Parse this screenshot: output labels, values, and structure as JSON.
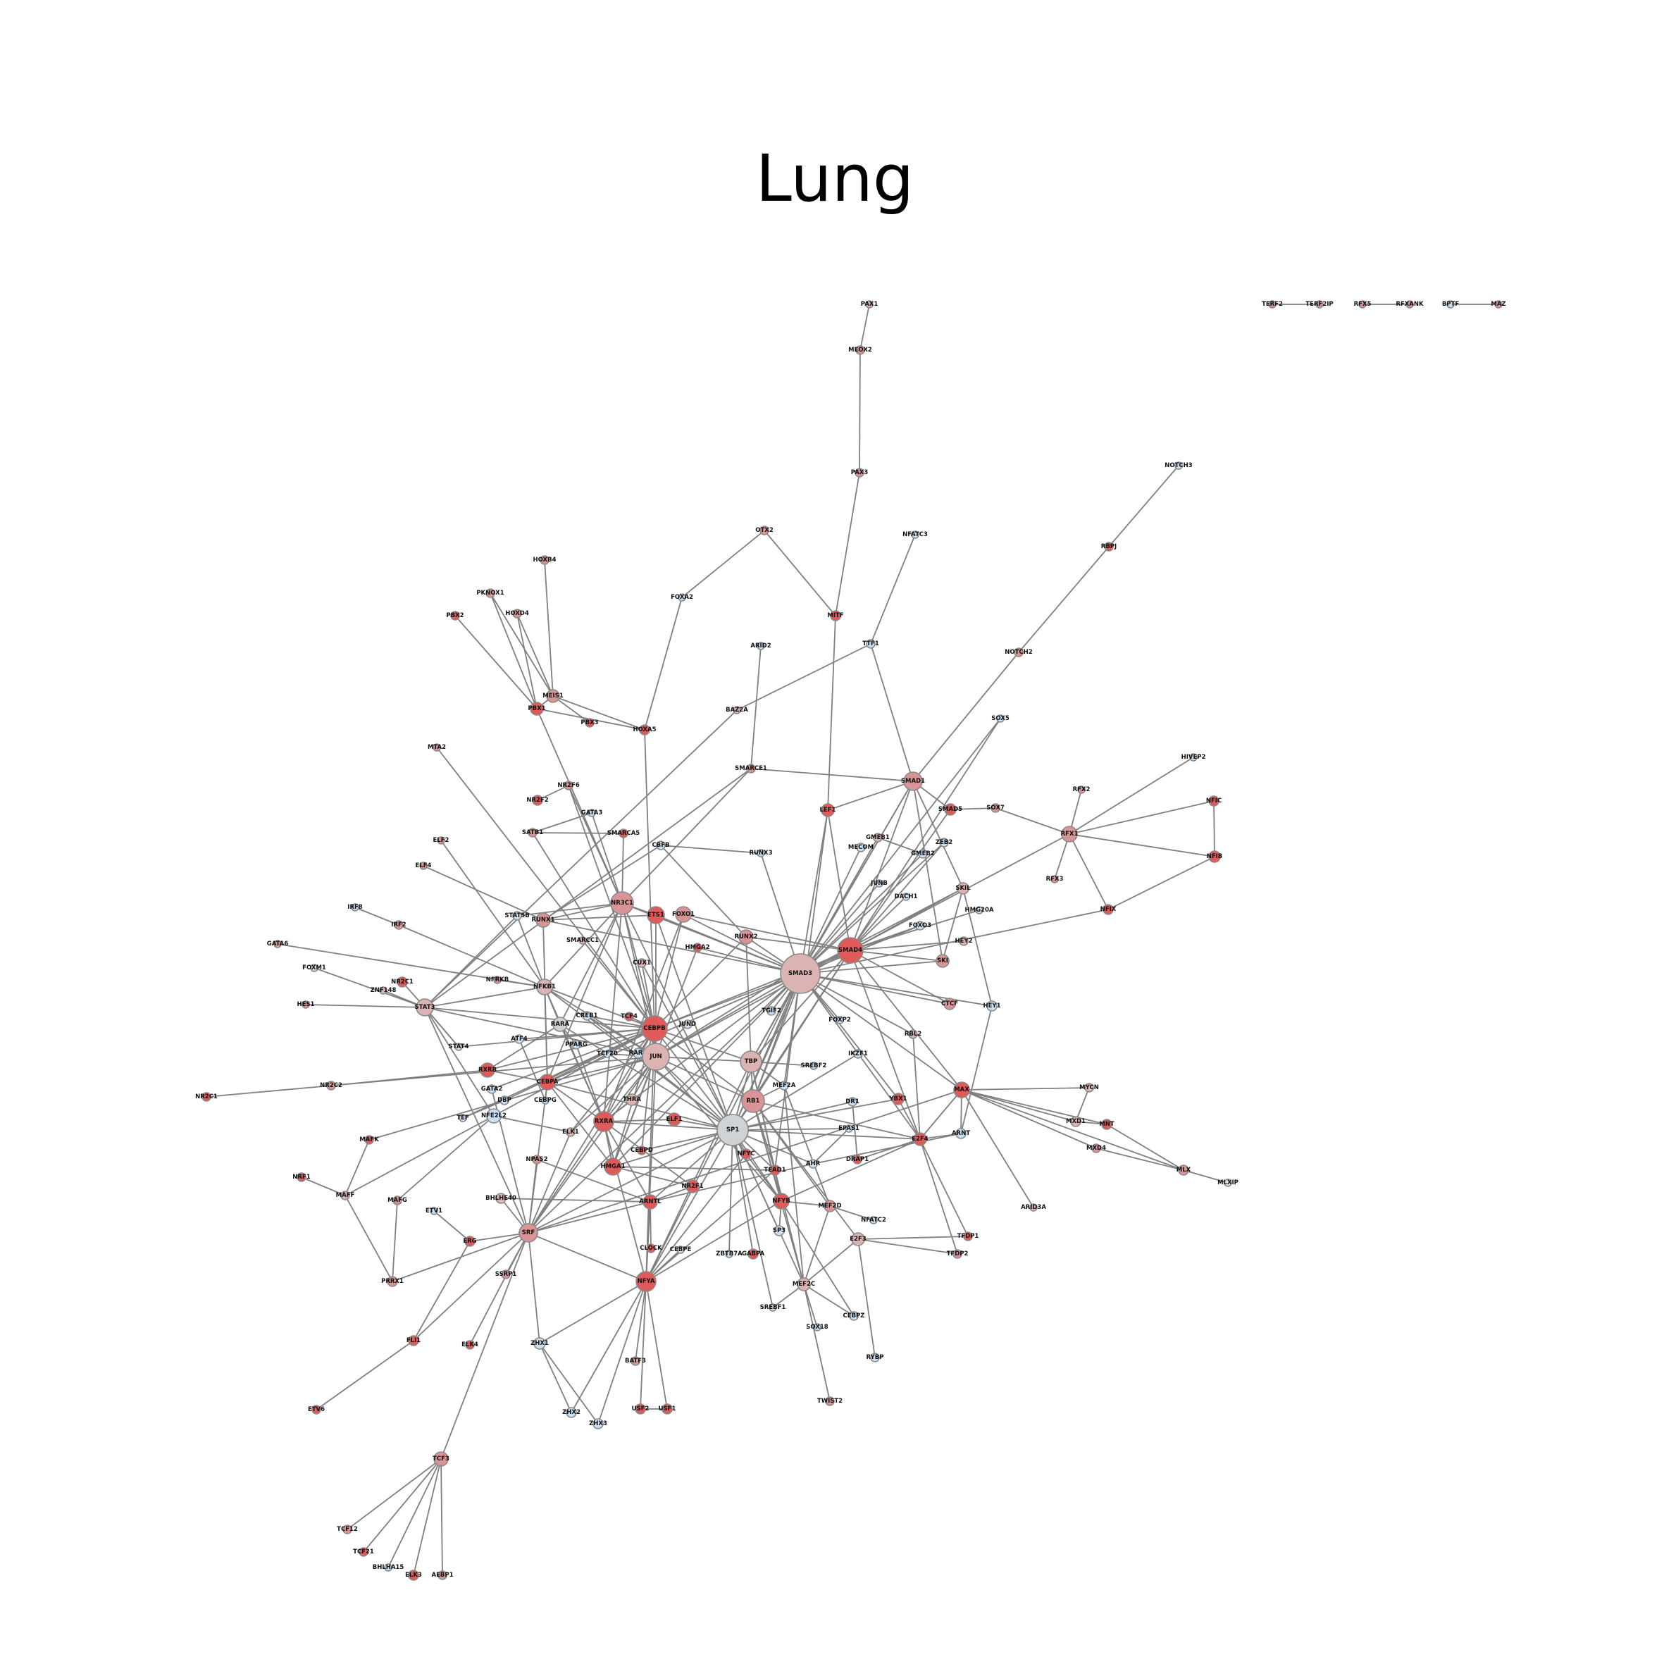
{
  "title": "Lung",
  "colors": {
    "red": "#e05a5a",
    "pink": "#d99595",
    "lightpink": "#dcb3b3",
    "grey": "#d0d3d6",
    "lightblue": "#c9e0f2",
    "edge": "#808080"
  },
  "nodes": [
    {
      "id": "TERF2",
      "label": "TERF2",
      "c": "pink"
    },
    {
      "id": "TERF2IP",
      "label": "TERF2IP",
      "c": "pink"
    },
    {
      "id": "RFX5",
      "label": "RFX5",
      "c": "pink"
    },
    {
      "id": "RFXANK",
      "label": "RFXANK",
      "c": "pink"
    },
    {
      "id": "BPTF",
      "label": "BPTF",
      "c": "lightblue"
    },
    {
      "id": "MAZ",
      "label": "MAZ",
      "c": "pink"
    },
    {
      "id": "PAX1",
      "label": "PAX1",
      "c": "lightpink"
    },
    {
      "id": "MEOX2",
      "label": "MEOX2",
      "c": "pink"
    },
    {
      "id": "PAX3",
      "label": "PAX3",
      "c": "pink"
    },
    {
      "id": "NOTCH3",
      "label": "NOTCH3",
      "c": "lightblue"
    },
    {
      "id": "NFATC3",
      "label": "NFATC3",
      "c": "lightblue"
    },
    {
      "id": "RBPJ",
      "label": "RBPJ",
      "c": "red"
    },
    {
      "id": "OTX2",
      "label": "OTX2",
      "c": "pink"
    },
    {
      "id": "HOXB4",
      "label": "HOXB4",
      "c": "pink"
    },
    {
      "id": "PKNOX1",
      "label": "PKNOX1",
      "c": "pink"
    },
    {
      "id": "PBX2",
      "label": "PBX2",
      "c": "red"
    },
    {
      "id": "HOXD4",
      "label": "HOXD4",
      "c": "pink"
    },
    {
      "id": "FOXA2",
      "label": "FOXA2",
      "c": "lightblue"
    },
    {
      "id": "MITF",
      "label": "MITF",
      "c": "red"
    },
    {
      "id": "ARID2",
      "label": "ARID2",
      "c": "lightblue"
    },
    {
      "id": "TTF1",
      "label": "TTF1",
      "c": "lightblue"
    },
    {
      "id": "NOTCH2",
      "label": "NOTCH2",
      "c": "pink"
    },
    {
      "id": "MEIS1",
      "label": "MEIS1",
      "c": "pink"
    },
    {
      "id": "PBX1",
      "label": "PBX1",
      "c": "red"
    },
    {
      "id": "PBX3",
      "label": "PBX3",
      "c": "red"
    },
    {
      "id": "HOXA5",
      "label": "HOXA5",
      "c": "red"
    },
    {
      "id": "BAZ2A",
      "label": "BAZ2A",
      "c": "lightpink"
    },
    {
      "id": "SOX5",
      "label": "SOX5",
      "c": "lightblue"
    },
    {
      "id": "HIVEP2",
      "label": "HIVEP2",
      "c": "lightblue"
    },
    {
      "id": "MTA2",
      "label": "MTA2",
      "c": "pink"
    },
    {
      "id": "SMARCE1",
      "label": "SMARCE1",
      "c": "pink"
    },
    {
      "id": "SMAD1",
      "label": "SMAD1",
      "c": "pink"
    },
    {
      "id": "NR2F6",
      "label": "NR2F6",
      "c": "pink"
    },
    {
      "id": "NR2F2",
      "label": "NR2F2",
      "c": "red"
    },
    {
      "id": "RFX2",
      "label": "RFX2",
      "c": "pink"
    },
    {
      "id": "NFIC",
      "label": "NFIC",
      "c": "red"
    },
    {
      "id": "LEF1",
      "label": "LEF1",
      "c": "red"
    },
    {
      "id": "SMAD5",
      "label": "SMAD5",
      "c": "red"
    },
    {
      "id": "SOX7",
      "label": "SOX7",
      "c": "pink"
    },
    {
      "id": "GATA3",
      "label": "GATA3",
      "c": "lightblue"
    },
    {
      "id": "SATB1",
      "label": "SATB1",
      "c": "pink"
    },
    {
      "id": "SMARCA5",
      "label": "SMARCA5",
      "c": "red"
    },
    {
      "id": "GMEB1",
      "label": "GMEB1",
      "c": "lightpink"
    },
    {
      "id": "RFX1",
      "label": "RFX1",
      "c": "pink"
    },
    {
      "id": "ELF2",
      "label": "ELF2",
      "c": "pink"
    },
    {
      "id": "CBFB",
      "label": "CBFB",
      "c": "lightblue"
    },
    {
      "id": "MECOM",
      "label": "MECOM",
      "c": "lightblue"
    },
    {
      "id": "ZEB2",
      "label": "ZEB2",
      "c": "lightblue"
    },
    {
      "id": "RUNX3",
      "label": "RUNX3",
      "c": "lightblue"
    },
    {
      "id": "GMEB2",
      "label": "GMEB2",
      "c": "lightblue"
    },
    {
      "id": "NFIB",
      "label": "NFIB",
      "c": "red"
    },
    {
      "id": "ELF4",
      "label": "ELF4",
      "c": "pink"
    },
    {
      "id": "RFX3",
      "label": "RFX3",
      "c": "pink"
    },
    {
      "id": "JUNB",
      "label": "JUNB",
      "c": "lightblue"
    },
    {
      "id": "SKIL",
      "label": "SKIL",
      "c": "lightpink"
    },
    {
      "id": "NR3C1",
      "label": "NR3C1",
      "c": "pink"
    },
    {
      "id": "DACH1",
      "label": "DACH1",
      "c": "lightblue"
    },
    {
      "id": "IRF8",
      "label": "IRF8",
      "c": "lightblue"
    },
    {
      "id": "STAT5B",
      "label": "STAT5B",
      "c": "lightblue"
    },
    {
      "id": "RUNX1",
      "label": "RUNX1",
      "c": "pink"
    },
    {
      "id": "ETS1",
      "label": "ETS1",
      "c": "red"
    },
    {
      "id": "FOXO1",
      "label": "FOXO1",
      "c": "pink"
    },
    {
      "id": "NFIX",
      "label": "NFIX",
      "c": "red"
    },
    {
      "id": "HMG20A",
      "label": "HMG20A",
      "c": "lightblue"
    },
    {
      "id": "IRF2",
      "label": "IRF2",
      "c": "pink"
    },
    {
      "id": "FOXO3",
      "label": "FOXO3",
      "c": "lightblue"
    },
    {
      "id": "SMARCC1",
      "label": "SMARCC1",
      "c": "lightpink"
    },
    {
      "id": "RUNX2",
      "label": "RUNX2",
      "c": "pink"
    },
    {
      "id": "HEY2",
      "label": "HEY2",
      "c": "lightpink"
    },
    {
      "id": "GATA6",
      "label": "GATA6",
      "c": "pink"
    },
    {
      "id": "SMAD4",
      "label": "SMAD4",
      "c": "red"
    },
    {
      "id": "HMGA2",
      "label": "HMGA2",
      "c": "red"
    },
    {
      "id": "UBTF",
      "label": "UBTF",
      "c": "pink"
    },
    {
      "id": "SKI",
      "label": "SKI",
      "c": "pink"
    },
    {
      "id": "FOXM1",
      "label": "FOXM1",
      "c": "lightblue"
    },
    {
      "id": "CUX1",
      "label": "CUX1",
      "c": "lightpink"
    },
    {
      "id": "NR2C1",
      "label": "NR2C1",
      "c": "red"
    },
    {
      "id": "NFRKB",
      "label": "NFRKB",
      "c": "pink"
    },
    {
      "id": "SMAD3",
      "label": "SMAD3",
      "c": "lightpink"
    },
    {
      "id": "ZNF148",
      "label": "ZNF148",
      "c": "lightpink"
    },
    {
      "id": "NFKB1",
      "label": "NFKB1",
      "c": "lightpink"
    },
    {
      "id": "CTCF",
      "label": "CTCF",
      "c": "pink"
    },
    {
      "id": "HES1",
      "label": "HES1",
      "c": "pink"
    },
    {
      "id": "STAT3",
      "label": "STAT3",
      "c": "lightpink"
    },
    {
      "id": "CREB1",
      "label": "CREB1",
      "c": "lightblue"
    },
    {
      "id": "TGIF2",
      "label": "TGIF2",
      "c": "lightblue"
    },
    {
      "id": "HEY1",
      "label": "HEY1",
      "c": "lightblue"
    },
    {
      "id": "TCF4",
      "label": "TCF4",
      "c": "red"
    },
    {
      "id": "FOXP2",
      "label": "FOXP2",
      "c": "lightblue"
    },
    {
      "id": "RARA",
      "label": "RARA",
      "c": "grey"
    },
    {
      "id": "JUND",
      "label": "JUND",
      "c": "lightblue"
    },
    {
      "id": "CEBPB",
      "label": "CEBPB",
      "c": "red"
    },
    {
      "id": "RBL2",
      "label": "RBL2",
      "c": "lightpink"
    },
    {
      "id": "ATF4",
      "label": "ATF4",
      "c": "lightblue"
    },
    {
      "id": "STAT4",
      "label": "STAT4",
      "c": "lightblue"
    },
    {
      "id": "PPARG",
      "label": "PPARG",
      "c": "lightblue"
    },
    {
      "id": "TCF20",
      "label": "TCF20",
      "c": "lightblue"
    },
    {
      "id": "RARG",
      "label": "RARG",
      "c": "lightblue"
    },
    {
      "id": "JUN",
      "label": "JUN",
      "c": "lightpink"
    },
    {
      "id": "IKZF1",
      "label": "IKZF1",
      "c": "lightblue"
    },
    {
      "id": "TBP",
      "label": "TBP",
      "c": "lightpink"
    },
    {
      "id": "SREBF2",
      "label": "SREBF2",
      "c": "lightblue"
    },
    {
      "id": "RXRB",
      "label": "RXRB",
      "c": "red"
    },
    {
      "id": "NR2C2",
      "label": "NR2C2",
      "c": "pink"
    },
    {
      "id": "CEBPA",
      "label": "CEBPA",
      "c": "red"
    },
    {
      "id": "YBX1",
      "label": "YBX1",
      "c": "red"
    },
    {
      "id": "MAX",
      "label": "MAX",
      "c": "red"
    },
    {
      "id": "MYCN",
      "label": "MYCN",
      "c": "lightpink"
    },
    {
      "id": "NR2C1b",
      "label": "NR2C1",
      "c": "red"
    },
    {
      "id": "GATA2",
      "label": "GATA2",
      "c": "lightblue"
    },
    {
      "id": "CEBPG",
      "label": "CEBPG",
      "c": "lightblue"
    },
    {
      "id": "DBP",
      "label": "DBP",
      "c": "lightblue"
    },
    {
      "id": "THRA",
      "label": "THRA",
      "c": "lightpink"
    },
    {
      "id": "MEF2A",
      "label": "MEF2A",
      "c": "lightblue"
    },
    {
      "id": "RB1",
      "label": "RB1",
      "c": "pink"
    },
    {
      "id": "DR1",
      "label": "DR1",
      "c": "lightblue"
    },
    {
      "id": "MXD1",
      "label": "MXD1",
      "c": "lightpink"
    },
    {
      "id": "MNT",
      "label": "MNT",
      "c": "red"
    },
    {
      "id": "NFE2L2",
      "label": "NFE2L2",
      "c": "lightblue"
    },
    {
      "id": "TEF",
      "label": "TEF",
      "c": "lightblue"
    },
    {
      "id": "RXRA",
      "label": "RXRA",
      "c": "red"
    },
    {
      "id": "ELF1",
      "label": "ELF1",
      "c": "red"
    },
    {
      "id": "SP1",
      "label": "SP1",
      "c": "grey"
    },
    {
      "id": "EPAS1",
      "label": "EPAS1",
      "c": "lightblue"
    },
    {
      "id": "ARNT",
      "label": "ARNT",
      "c": "lightblue"
    },
    {
      "id": "MAFK",
      "label": "MAFK",
      "c": "red"
    },
    {
      "id": "ELK1",
      "label": "ELK1",
      "c": "lightpink"
    },
    {
      "id": "E2F4",
      "label": "E2F4",
      "c": "red"
    },
    {
      "id": "MXD4",
      "label": "MXD4",
      "c": "pink"
    },
    {
      "id": "CEBPD",
      "label": "CEBPD",
      "c": "red"
    },
    {
      "id": "NFYC",
      "label": "NFYC",
      "c": "red"
    },
    {
      "id": "NPAS2",
      "label": "NPAS2",
      "c": "pink"
    },
    {
      "id": "HMGA1",
      "label": "HMGA1",
      "c": "red"
    },
    {
      "id": "TEAD1",
      "label": "TEAD1",
      "c": "red"
    },
    {
      "id": "AHR",
      "label": "AHR",
      "c": "lightblue"
    },
    {
      "id": "DRAP1",
      "label": "DRAP1",
      "c": "red"
    },
    {
      "id": "MLX",
      "label": "MLX",
      "c": "pink"
    },
    {
      "id": "MLXIP",
      "label": "MLXIP",
      "c": "lightblue"
    },
    {
      "id": "NRF1",
      "label": "NRF1",
      "c": "red"
    },
    {
      "id": "MAFF",
      "label": "MAFF",
      "c": "lightpink"
    },
    {
      "id": "MAFG",
      "label": "MAFG",
      "c": "pink"
    },
    {
      "id": "NR2F1",
      "label": "NR2F1",
      "c": "red"
    },
    {
      "id": "BHLHE40",
      "label": "BHLHE40",
      "c": "lightpink"
    },
    {
      "id": "ARNTL",
      "label": "ARNTL",
      "c": "red"
    },
    {
      "id": "NFYB",
      "label": "NFYB",
      "c": "red"
    },
    {
      "id": "ARID3A",
      "label": "ARID3A",
      "c": "lightpink"
    },
    {
      "id": "ETV1",
      "label": "ETV1",
      "c": "lightblue"
    },
    {
      "id": "MEF2D",
      "label": "MEF2D",
      "c": "pink"
    },
    {
      "id": "NFATC2",
      "label": "NFATC2",
      "c": "lightblue"
    },
    {
      "id": "ERG",
      "label": "ERG",
      "c": "red"
    },
    {
      "id": "SRF",
      "label": "SRF",
      "c": "pink"
    },
    {
      "id": "SP3",
      "label": "SP3",
      "c": "lightblue"
    },
    {
      "id": "TFDP1",
      "label": "TFDP1",
      "c": "red"
    },
    {
      "id": "CLOCK",
      "label": "CLOCK",
      "c": "red"
    },
    {
      "id": "E2F3",
      "label": "E2F3",
      "c": "lightpink"
    },
    {
      "id": "TFDP2",
      "label": "TFDP2",
      "c": "pink"
    },
    {
      "id": "CEBPE",
      "label": "CEBPE",
      "c": "lightblue"
    },
    {
      "id": "ZBTB7A",
      "label": "ZBTB7A",
      "c": "lightblue"
    },
    {
      "id": "GABPA",
      "label": "GABPA",
      "c": "red"
    },
    {
      "id": "SSRP1",
      "label": "SSRP1",
      "c": "pink"
    },
    {
      "id": "PRRX1",
      "label": "PRRX1",
      "c": "pink"
    },
    {
      "id": "NFYA",
      "label": "NFYA",
      "c": "red"
    },
    {
      "id": "MEF2C",
      "label": "MEF2C",
      "c": "lightpink"
    },
    {
      "id": "SREBF1",
      "label": "SREBF1",
      "c": "lightblue"
    },
    {
      "id": "CEBPZ",
      "label": "CEBPZ",
      "c": "lightblue"
    },
    {
      "id": "SOX18",
      "label": "SOX18",
      "c": "lightblue"
    },
    {
      "id": "FLI1",
      "label": "FLI1",
      "c": "red"
    },
    {
      "id": "ZHX1",
      "label": "ZHX1",
      "c": "lightblue"
    },
    {
      "id": "ELK4",
      "label": "ELK4",
      "c": "red"
    },
    {
      "id": "BATF3",
      "label": "BATF3",
      "c": "pink"
    },
    {
      "id": "RYBP",
      "label": "RYBP",
      "c": "lightblue"
    },
    {
      "id": "TWIST2",
      "label": "TWIST2",
      "c": "pink"
    },
    {
      "id": "ETV6",
      "label": "ETV6",
      "c": "red"
    },
    {
      "id": "USF2",
      "label": "USF2",
      "c": "red"
    },
    {
      "id": "USF1",
      "label": "USF1",
      "c": "red"
    },
    {
      "id": "ZHX2",
      "label": "ZHX2",
      "c": "lightblue"
    },
    {
      "id": "ZHX3",
      "label": "ZHX3",
      "c": "lightblue"
    },
    {
      "id": "TCF3",
      "label": "TCF3",
      "c": "pink"
    },
    {
      "id": "TCF12",
      "label": "TCF12",
      "c": "pink"
    },
    {
      "id": "TCF21",
      "label": "TCF21",
      "c": "red"
    },
    {
      "id": "BHLHA15",
      "label": "BHLHA15",
      "c": "lightblue"
    },
    {
      "id": "ELK3",
      "label": "ELK3",
      "c": "red"
    },
    {
      "id": "AEBP1",
      "label": "AEBP1",
      "c": "pink"
    }
  ]
}
